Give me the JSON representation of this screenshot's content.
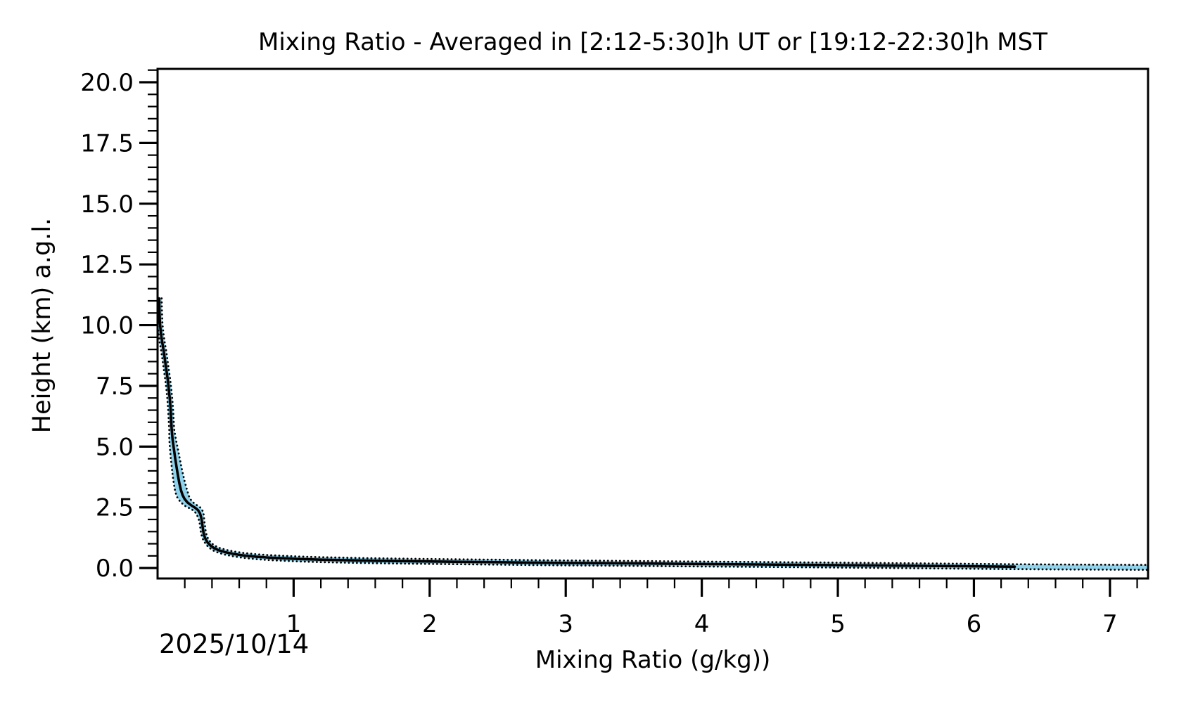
{
  "figure": {
    "title": "Mixing Ratio - Averaged in [2:12-5:30]h UT or [19:12-22:30]h MST",
    "xlabel": "Mixing Ratio (g/kg))",
    "ylabel": "Height (km) a.g.l.",
    "date_label": "2025/10/14"
  },
  "chart_data": {
    "type": "line",
    "title": "Mixing Ratio - Averaged in [2:12-5:30]h UT or [19:12-22:30]h MST",
    "xlabel": "Mixing Ratio (g/kg))",
    "ylabel": "Height (km) a.g.l.",
    "annotations": [
      {
        "text": "2025/10/14",
        "position": "bottom-left"
      }
    ],
    "grid": false,
    "legend": false,
    "xlim": [
      0.0,
      7.28
    ],
    "ylim": [
      -0.43,
      20.55
    ],
    "x_ticks_major": [
      1,
      2,
      3,
      4,
      5,
      6,
      7
    ],
    "x_tick_labels": [
      "1",
      "2",
      "3",
      "4",
      "5",
      "6",
      "7"
    ],
    "x_minor_step": 0.2,
    "y_ticks_major": [
      0.0,
      2.5,
      5.0,
      7.5,
      10.0,
      12.5,
      15.0,
      17.5,
      20.0
    ],
    "y_tick_labels": [
      "0.0",
      "2.5",
      "5.0",
      "7.5",
      "10.0",
      "12.5",
      "15.0",
      "17.5",
      "20.0"
    ],
    "y_minor_step": 0.5,
    "series": [
      {
        "name": "mean mixing ratio profile",
        "color": "#000000",
        "style": "solid",
        "note": "points are [height_km, mixing_ratio_g_per_kg], ordered top of profile to surface",
        "points": [
          [
            11.1,
            0.012
          ],
          [
            10.6,
            0.014
          ],
          [
            10.1,
            0.017
          ],
          [
            9.7,
            0.024
          ],
          [
            9.3,
            0.034
          ],
          [
            8.9,
            0.046
          ],
          [
            8.5,
            0.056
          ],
          [
            8.1,
            0.066
          ],
          [
            7.7,
            0.076
          ],
          [
            7.3,
            0.084
          ],
          [
            6.9,
            0.091
          ],
          [
            6.5,
            0.096
          ],
          [
            6.1,
            0.1
          ],
          [
            5.7,
            0.104
          ],
          [
            5.3,
            0.11
          ],
          [
            4.9,
            0.12
          ],
          [
            4.5,
            0.13
          ],
          [
            4.1,
            0.141
          ],
          [
            3.8,
            0.15
          ],
          [
            3.5,
            0.16
          ],
          [
            3.2,
            0.172
          ],
          [
            3.0,
            0.184
          ],
          [
            2.85,
            0.198
          ],
          [
            2.7,
            0.22
          ],
          [
            2.58,
            0.248
          ],
          [
            2.48,
            0.276
          ],
          [
            2.38,
            0.298
          ],
          [
            2.25,
            0.312
          ],
          [
            2.1,
            0.32
          ],
          [
            1.9,
            0.326
          ],
          [
            1.7,
            0.331
          ],
          [
            1.5,
            0.336
          ],
          [
            1.35,
            0.342
          ],
          [
            1.2,
            0.352
          ],
          [
            1.05,
            0.368
          ],
          [
            0.92,
            0.39
          ],
          [
            0.82,
            0.415
          ],
          [
            0.73,
            0.45
          ],
          [
            0.65,
            0.5
          ],
          [
            0.58,
            0.56
          ],
          [
            0.52,
            0.63
          ],
          [
            0.47,
            0.72
          ],
          [
            0.43,
            0.82
          ],
          [
            0.4,
            0.93
          ],
          [
            0.37,
            1.06
          ],
          [
            0.345,
            1.2
          ],
          [
            0.32,
            1.4
          ],
          [
            0.3,
            1.6
          ],
          [
            0.285,
            1.8
          ],
          [
            0.27,
            2.0
          ],
          [
            0.255,
            2.25
          ],
          [
            0.24,
            2.5
          ],
          [
            0.225,
            2.75
          ],
          [
            0.21,
            3.0
          ],
          [
            0.2,
            3.25
          ],
          [
            0.19,
            3.5
          ],
          [
            0.175,
            3.8
          ],
          [
            0.16,
            4.1
          ],
          [
            0.15,
            4.4
          ],
          [
            0.135,
            4.7
          ],
          [
            0.12,
            5.0
          ],
          [
            0.105,
            5.3
          ],
          [
            0.09,
            5.6
          ],
          [
            0.075,
            5.9
          ],
          [
            0.065,
            6.1
          ],
          [
            0.055,
            6.3
          ]
        ]
      },
      {
        "name": "uncertainty band (dotted edges)",
        "fill_color": "#8ed2ec",
        "edge_color": "#000000",
        "edge_style": "dotted",
        "note": "points are [height_km, mixing_ratio_g_per_kg, halfwidth_g_per_kg]; band extends past end of solid line to right axis",
        "points": [
          [
            11.1,
            0.012,
            0.004
          ],
          [
            10.6,
            0.014,
            0.004
          ],
          [
            10.1,
            0.017,
            0.004
          ],
          [
            9.7,
            0.024,
            0.004
          ],
          [
            9.3,
            0.034,
            0.004
          ],
          [
            8.9,
            0.046,
            0.005
          ],
          [
            8.5,
            0.056,
            0.006
          ],
          [
            8.1,
            0.066,
            0.007
          ],
          [
            7.7,
            0.076,
            0.008
          ],
          [
            7.3,
            0.084,
            0.009
          ],
          [
            6.9,
            0.091,
            0.01
          ],
          [
            6.5,
            0.096,
            0.011
          ],
          [
            6.1,
            0.1,
            0.014
          ],
          [
            5.7,
            0.104,
            0.018
          ],
          [
            5.3,
            0.11,
            0.024
          ],
          [
            4.9,
            0.12,
            0.029
          ],
          [
            4.5,
            0.13,
            0.033
          ],
          [
            4.1,
            0.141,
            0.036
          ],
          [
            3.8,
            0.15,
            0.039
          ],
          [
            3.5,
            0.16,
            0.042
          ],
          [
            3.2,
            0.172,
            0.045
          ],
          [
            3.0,
            0.184,
            0.046
          ],
          [
            2.85,
            0.198,
            0.046
          ],
          [
            2.7,
            0.22,
            0.046
          ],
          [
            2.58,
            0.248,
            0.044
          ],
          [
            2.48,
            0.276,
            0.04
          ],
          [
            2.38,
            0.298,
            0.035
          ],
          [
            2.25,
            0.312,
            0.028
          ],
          [
            2.1,
            0.32,
            0.022
          ],
          [
            1.9,
            0.326,
            0.018
          ],
          [
            1.7,
            0.331,
            0.016
          ],
          [
            1.5,
            0.336,
            0.015
          ],
          [
            1.35,
            0.342,
            0.015
          ],
          [
            1.2,
            0.352,
            0.015
          ],
          [
            1.05,
            0.368,
            0.015
          ],
          [
            0.92,
            0.39,
            0.015
          ],
          [
            0.82,
            0.415,
            0.015
          ],
          [
            0.73,
            0.45,
            0.015
          ],
          [
            0.65,
            0.5,
            0.015
          ],
          [
            0.58,
            0.56,
            0.015
          ],
          [
            0.52,
            0.63,
            0.015
          ],
          [
            0.47,
            0.72,
            0.015
          ],
          [
            0.43,
            0.82,
            0.015
          ],
          [
            0.4,
            0.93,
            0.015
          ],
          [
            0.37,
            1.06,
            0.015
          ],
          [
            0.345,
            1.2,
            0.015
          ],
          [
            0.32,
            1.4,
            0.015
          ],
          [
            0.3,
            1.6,
            0.015
          ],
          [
            0.285,
            1.8,
            0.015
          ],
          [
            0.27,
            2.0,
            0.015
          ],
          [
            0.255,
            2.25,
            0.015
          ],
          [
            0.24,
            2.5,
            0.015
          ],
          [
            0.225,
            2.75,
            0.015
          ],
          [
            0.21,
            3.0,
            0.015
          ],
          [
            0.2,
            3.25,
            0.015
          ],
          [
            0.19,
            3.5,
            0.015
          ],
          [
            0.175,
            3.8,
            0.015
          ],
          [
            0.16,
            4.1,
            0.015
          ],
          [
            0.15,
            4.4,
            0.015
          ],
          [
            0.135,
            4.7,
            0.015
          ],
          [
            0.12,
            5.0,
            0.015
          ],
          [
            0.105,
            5.3,
            0.015
          ],
          [
            0.09,
            5.6,
            0.015
          ],
          [
            0.075,
            5.9,
            0.015
          ],
          [
            0.065,
            6.1,
            0.015
          ],
          [
            0.055,
            6.3,
            0.015
          ],
          [
            0.045,
            6.6,
            0.015
          ],
          [
            0.035,
            6.95,
            0.015
          ],
          [
            0.028,
            7.28,
            0.015
          ]
        ]
      }
    ],
    "colors": {
      "line": "#000000",
      "band_fill": "#8ed2ec",
      "band_edge": "#000000",
      "axes": "#000000",
      "background": "#ffffff"
    }
  }
}
